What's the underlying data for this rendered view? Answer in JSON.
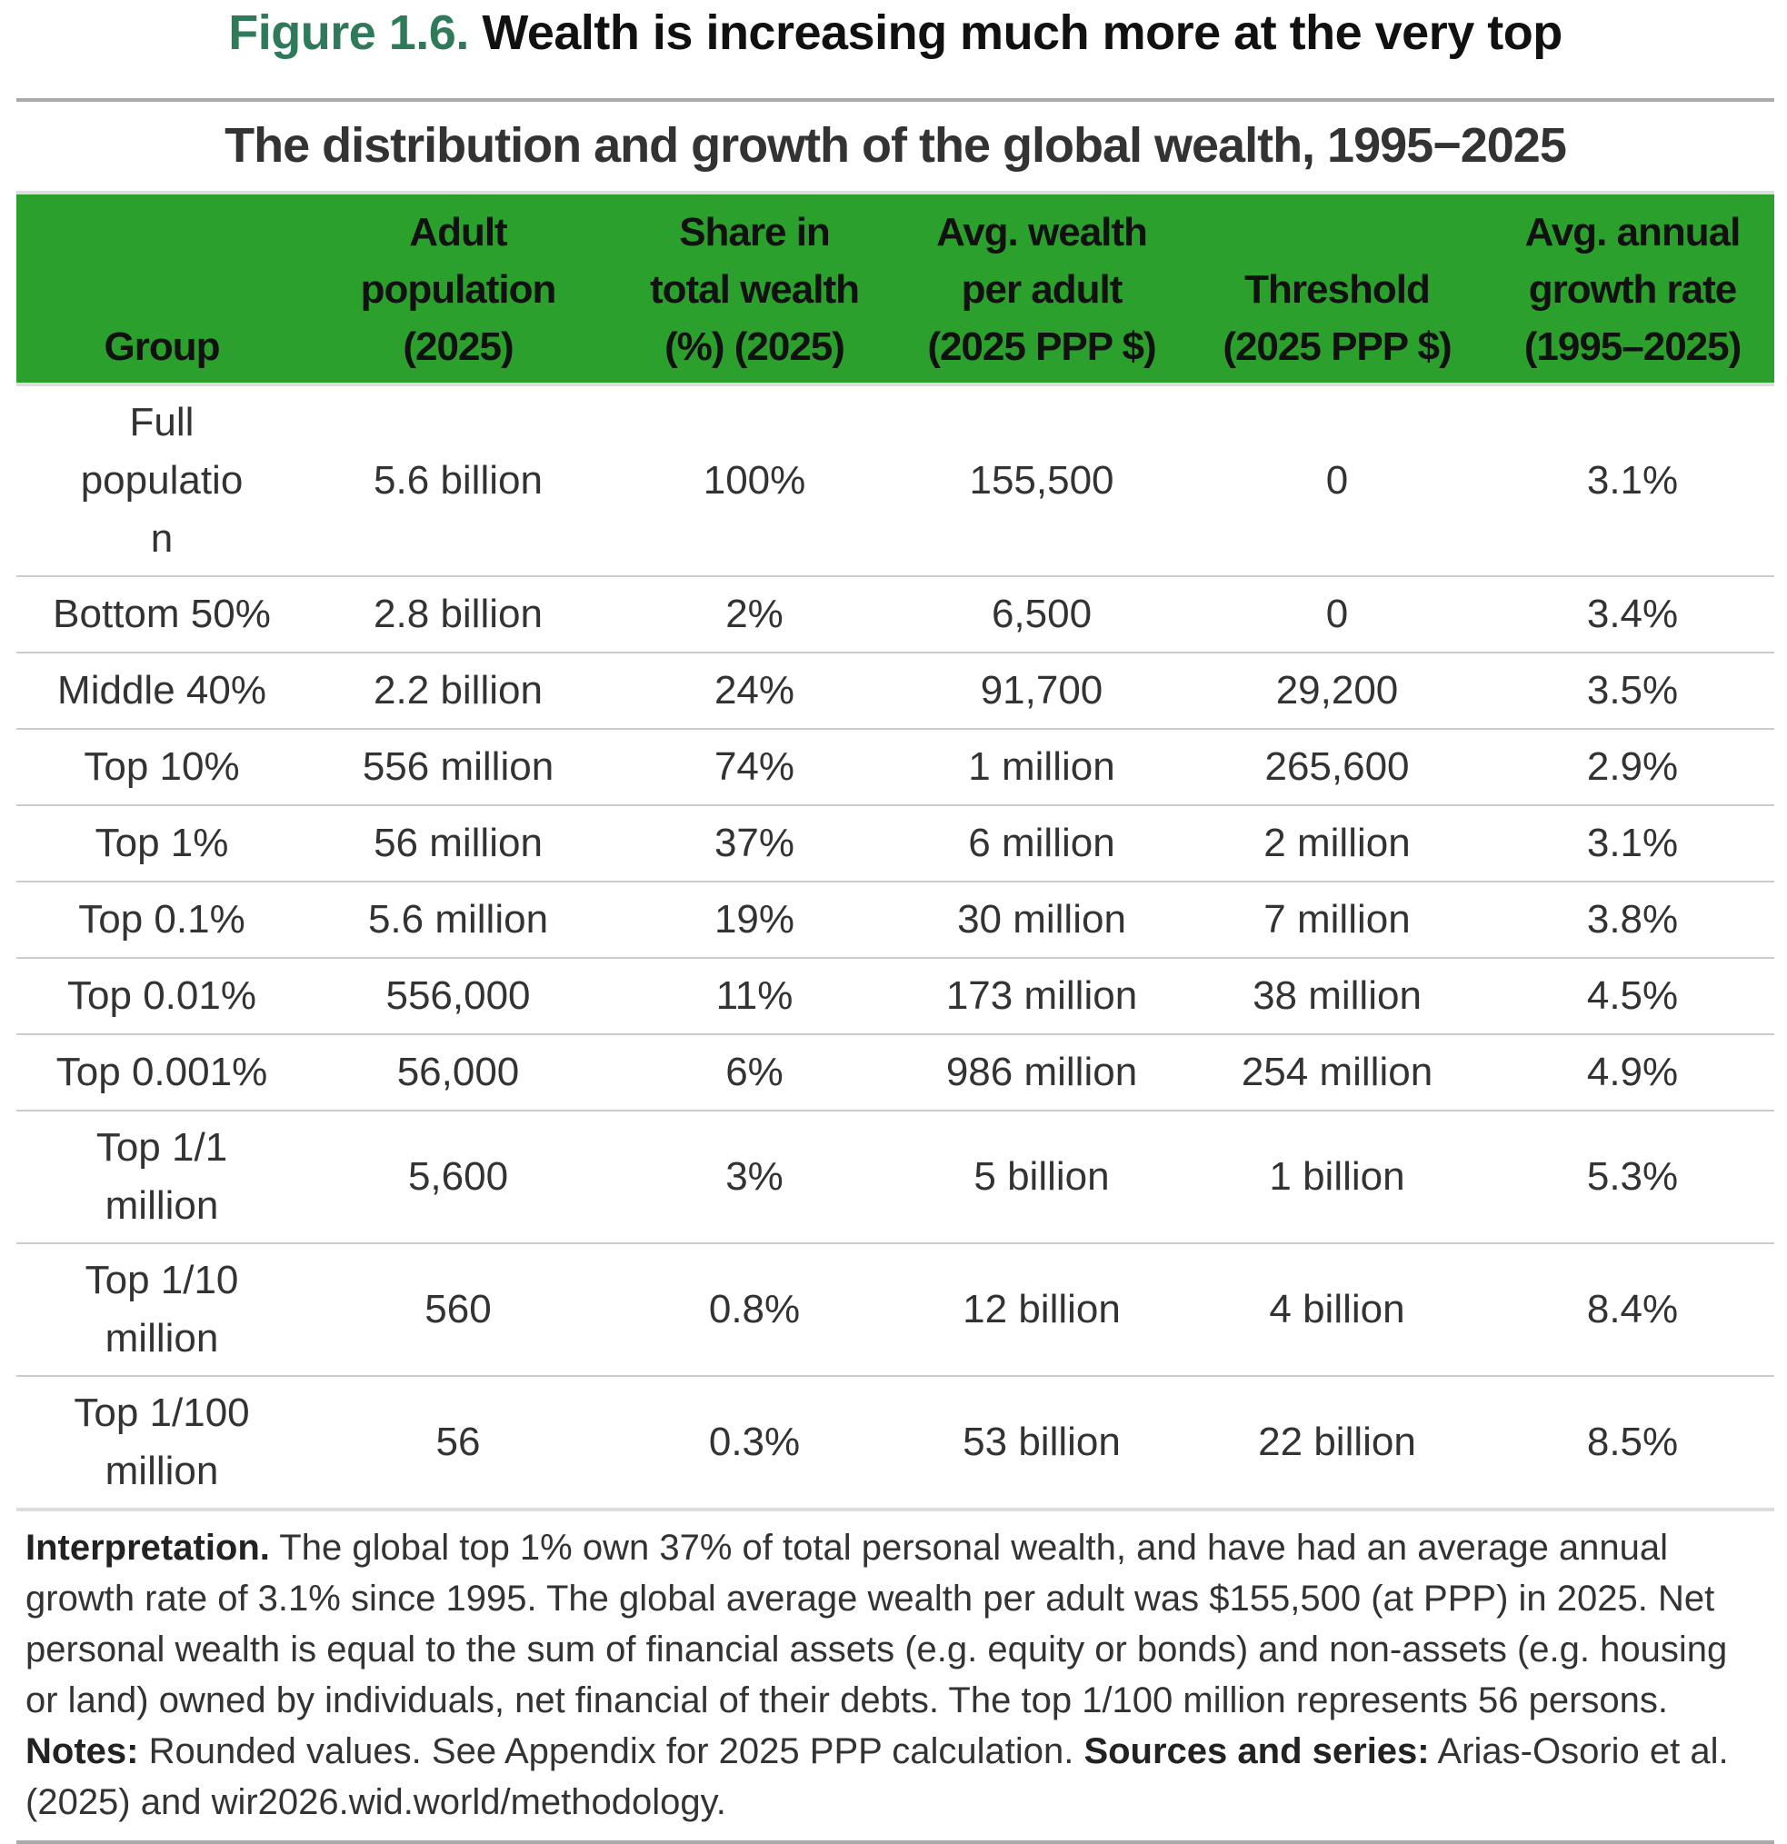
{
  "figure": {
    "number": "Figure 1.6.",
    "title": "Wealth is increasing much more at the very top",
    "subtitle": "The distribution and growth of the global wealth, 1995−2025",
    "colors": {
      "header_bg": "#2ca02c",
      "figure_number": "#2e7a5a"
    }
  },
  "table": {
    "headers": [
      [
        "Group"
      ],
      [
        "Adult",
        "population",
        "(2025)"
      ],
      [
        "Share in",
        "total wealth",
        "(%) (2025)"
      ],
      [
        "Avg. wealth",
        "per adult",
        "(2025 PPP $)"
      ],
      [
        "Threshold",
        "(2025 PPP $)"
      ],
      [
        "Avg. annual",
        "growth rate",
        "(1995–2025)"
      ]
    ],
    "rows": [
      [
        "Full population",
        "5.6 billion",
        "100%",
        "155,500",
        "0",
        "3.1%"
      ],
      [
        "Bottom 50%",
        "2.8 billion",
        "2%",
        "6,500",
        "0",
        "3.4%"
      ],
      [
        "Middle 40%",
        "2.2 billion",
        "24%",
        "91,700",
        "29,200",
        "3.5%"
      ],
      [
        "Top 10%",
        "556 million",
        "74%",
        "1 million",
        "265,600",
        "2.9%"
      ],
      [
        "Top 1%",
        "56 million",
        "37%",
        "6 million",
        "2 million",
        "3.1%"
      ],
      [
        "Top 0.1%",
        "5.6 million",
        "19%",
        "30 million",
        "7 million",
        "3.8%"
      ],
      [
        "Top 0.01%",
        "556,000",
        "11%",
        "173 million",
        "38 million",
        "4.5%"
      ],
      [
        "Top 0.001%",
        "56,000",
        "6%",
        "986 million",
        "254 million",
        "4.9%"
      ],
      [
        "Top 1/1 million",
        "5,600",
        "3%",
        "5 billion",
        "1 billion",
        "5.3%"
      ],
      [
        "Top 1/10 million",
        "560",
        "0.8%",
        "12 billion",
        "4 billion",
        "8.4%"
      ],
      [
        "Top 1/100 million",
        "56",
        "0.3%",
        "53 billion",
        "22 billion",
        "8.5%"
      ]
    ]
  },
  "notes": {
    "interpretation_label": "Interpretation.",
    "interpretation_text": " The global top 1% own 37% of total personal wealth, and have had an average annual growth rate of 3.1% since 1995. The global average wealth per adult was $155,500 (at PPP) in 2025. Net personal wealth is equal to the sum of financial assets (e.g. equity or bonds) and non-assets (e.g. housing or land) owned by individuals, net financial of their debts. The top 1/100 million represents 56 persons. ",
    "notes_label": "Notes:",
    "notes_text": " Rounded values. See Appendix for 2025 PPP calculation. ",
    "sources_label": "Sources and series:",
    "sources_text": " Arias-Osorio et al. (2025) and wir2026.wid.world/methodology."
  }
}
